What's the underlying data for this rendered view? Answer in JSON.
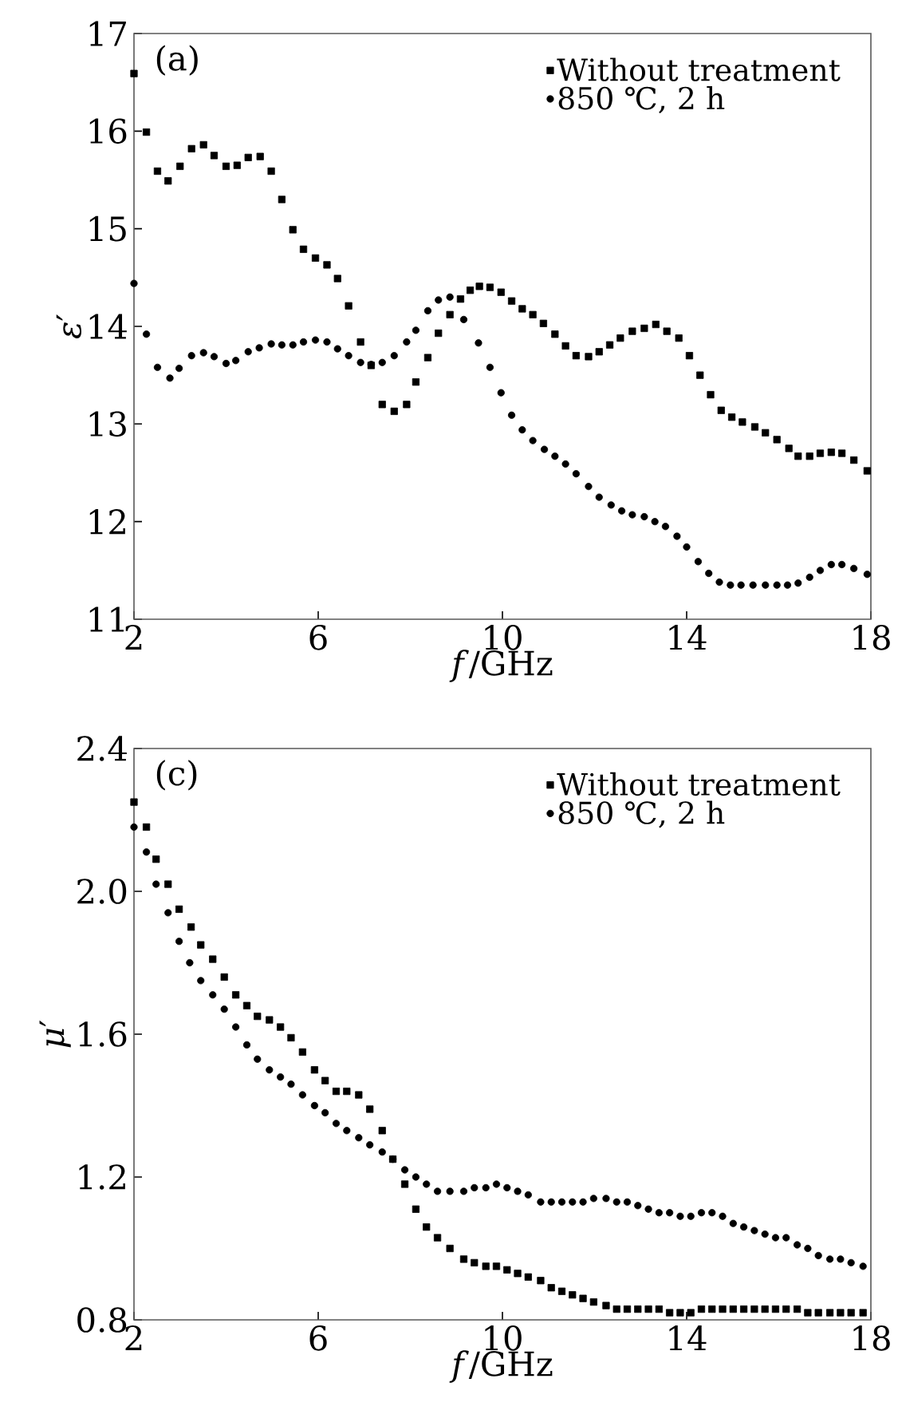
{
  "chart_data": [
    {
      "type": "scatter",
      "xlabel": "*f*/GHz",
      "ylabel": "*ε*′",
      "annotations": [
        "(a)"
      ],
      "xlim": [
        2,
        18
      ],
      "xticks": [
        2,
        6,
        10,
        14,
        18
      ],
      "ylim": [
        11,
        17
      ],
      "yticks": [
        11,
        12,
        13,
        14,
        15,
        16,
        17
      ],
      "legend": "top right",
      "grid": false,
      "series": [
        {
          "name": "Without treatment",
          "color": "#000000",
          "marker": "square",
          "x": [
            2.0,
            2.27,
            2.51,
            2.74,
            3.0,
            3.25,
            3.51,
            3.74,
            4.0,
            4.24,
            4.48,
            4.74,
            4.98,
            5.21,
            5.45,
            5.68,
            5.94,
            6.19,
            6.42,
            6.66,
            6.92,
            7.15,
            7.39,
            7.65,
            7.92,
            8.12,
            8.38,
            8.61,
            8.86,
            9.09,
            9.3,
            9.5,
            9.73,
            9.97,
            10.2,
            10.43,
            10.66,
            10.89,
            11.14,
            11.37,
            11.6,
            11.87,
            12.1,
            12.33,
            12.56,
            12.82,
            13.08,
            13.33,
            13.57,
            13.83,
            14.06,
            14.29,
            14.52,
            14.75,
            14.98,
            15.21,
            15.48,
            15.71,
            15.96,
            16.22,
            16.42,
            16.67,
            16.9,
            17.14,
            17.37,
            17.63,
            17.92
          ],
          "values": [
            16.59,
            15.99,
            15.59,
            15.49,
            15.64,
            15.82,
            15.86,
            15.75,
            15.64,
            15.65,
            15.73,
            15.74,
            15.59,
            15.3,
            14.99,
            14.79,
            14.7,
            14.63,
            14.49,
            14.21,
            13.84,
            13.6,
            13.2,
            13.13,
            13.2,
            13.43,
            13.68,
            13.93,
            14.12,
            14.28,
            14.37,
            14.41,
            14.4,
            14.35,
            14.26,
            14.18,
            14.12,
            14.03,
            13.92,
            13.8,
            13.7,
            13.69,
            13.74,
            13.81,
            13.88,
            13.95,
            13.98,
            14.02,
            13.95,
            13.88,
            13.7,
            13.5,
            13.3,
            13.14,
            13.07,
            13.02,
            12.97,
            12.91,
            12.84,
            12.75,
            12.67,
            12.67,
            12.7,
            12.71,
            12.7,
            12.63,
            12.52
          ]
        },
        {
          "name": "850 ℃, 2 h",
          "color": "#000000",
          "marker": "circle",
          "x": [
            2.0,
            2.27,
            2.51,
            2.78,
            2.98,
            3.25,
            3.51,
            3.74,
            4.0,
            4.21,
            4.48,
            4.72,
            4.98,
            5.21,
            5.45,
            5.68,
            5.94,
            6.19,
            6.42,
            6.66,
            6.92,
            7.15,
            7.39,
            7.65,
            7.92,
            8.12,
            8.38,
            8.61,
            8.86,
            9.16,
            9.48,
            9.73,
            9.97,
            10.2,
            10.43,
            10.66,
            10.91,
            11.14,
            11.37,
            11.6,
            11.87,
            12.1,
            12.36,
            12.59,
            12.82,
            13.08,
            13.31,
            13.54,
            13.79,
            14.0,
            14.25,
            14.48,
            14.71,
            14.95,
            15.18,
            15.44,
            15.71,
            15.96,
            16.19,
            16.42,
            16.67,
            16.9,
            17.14,
            17.37,
            17.63,
            17.92
          ],
          "values": [
            14.44,
            13.92,
            13.58,
            13.47,
            13.57,
            13.7,
            13.73,
            13.69,
            13.62,
            13.65,
            13.74,
            13.78,
            13.82,
            13.81,
            13.81,
            13.84,
            13.86,
            13.84,
            13.77,
            13.7,
            13.63,
            13.61,
            13.63,
            13.7,
            13.84,
            13.96,
            14.16,
            14.27,
            14.3,
            14.07,
            13.83,
            13.58,
            13.32,
            13.09,
            12.94,
            12.83,
            12.74,
            12.67,
            12.59,
            12.49,
            12.36,
            12.25,
            12.17,
            12.11,
            12.07,
            12.05,
            12.0,
            11.95,
            11.85,
            11.74,
            11.59,
            11.47,
            11.38,
            11.35,
            11.35,
            11.35,
            11.35,
            11.35,
            11.35,
            11.37,
            11.43,
            11.5,
            11.56,
            11.56,
            11.52,
            11.46
          ]
        }
      ]
    },
    {
      "type": "scatter",
      "xlabel": "*f*/GHz",
      "ylabel": "*μ*′",
      "annotations": [
        "(c)"
      ],
      "xlim": [
        2,
        18
      ],
      "xticks": [
        2,
        6,
        10,
        14,
        18
      ],
      "ylim": [
        0.8,
        2.4
      ],
      "yticks": [
        {
          "value": 0.8,
          "label": "0.8"
        },
        {
          "value": 1.2,
          "label": "1.2"
        },
        {
          "value": 1.6,
          "label": "1.6"
        },
        {
          "value": 2.0,
          "label": "2.0"
        },
        {
          "value": 2.4,
          "label": "2.4"
        }
      ],
      "legend": "top right",
      "grid": false,
      "series": [
        {
          "name": "Without treatment",
          "color": "#000000",
          "marker": "square",
          "x": [
            2.0,
            2.27,
            2.48,
            2.74,
            2.98,
            3.24,
            3.45,
            3.71,
            3.96,
            4.21,
            4.45,
            4.68,
            4.94,
            5.18,
            5.41,
            5.66,
            5.92,
            6.15,
            6.39,
            6.62,
            6.88,
            7.12,
            7.39,
            7.62,
            7.88,
            8.12,
            8.35,
            8.59,
            8.86,
            9.16,
            9.39,
            9.64,
            9.87,
            10.1,
            10.33,
            10.56,
            10.83,
            11.06,
            11.29,
            11.52,
            11.75,
            11.98,
            12.25,
            12.48,
            12.71,
            12.94,
            13.17,
            13.4,
            13.63,
            13.86,
            14.09,
            14.32,
            14.55,
            14.78,
            15.01,
            15.24,
            15.47,
            15.7,
            15.93,
            16.16,
            16.4,
            16.63,
            16.86,
            17.11,
            17.34,
            17.57,
            17.83
          ],
          "values": [
            2.25,
            2.18,
            2.09,
            2.02,
            1.95,
            1.9,
            1.85,
            1.81,
            1.76,
            1.71,
            1.68,
            1.65,
            1.64,
            1.62,
            1.59,
            1.55,
            1.5,
            1.47,
            1.44,
            1.44,
            1.43,
            1.39,
            1.33,
            1.25,
            1.18,
            1.11,
            1.06,
            1.03,
            1.0,
            0.97,
            0.96,
            0.95,
            0.95,
            0.94,
            0.93,
            0.92,
            0.91,
            0.89,
            0.88,
            0.87,
            0.86,
            0.85,
            0.84,
            0.83,
            0.83,
            0.83,
            0.83,
            0.83,
            0.82,
            0.82,
            0.82,
            0.83,
            0.83,
            0.83,
            0.83,
            0.83,
            0.83,
            0.83,
            0.83,
            0.83,
            0.83,
            0.82,
            0.82,
            0.82,
            0.82,
            0.82,
            0.82
          ]
        },
        {
          "name": "850 ℃, 2 h",
          "color": "#000000",
          "marker": "circle",
          "x": [
            2.0,
            2.27,
            2.48,
            2.74,
            2.98,
            3.21,
            3.45,
            3.71,
            3.96,
            4.21,
            4.45,
            4.68,
            4.94,
            5.18,
            5.41,
            5.66,
            5.92,
            6.15,
            6.39,
            6.62,
            6.88,
            7.12,
            7.39,
            7.62,
            7.88,
            8.12,
            8.35,
            8.59,
            8.86,
            9.16,
            9.39,
            9.64,
            9.87,
            10.1,
            10.33,
            10.56,
            10.83,
            11.06,
            11.29,
            11.52,
            11.75,
            11.98,
            12.25,
            12.48,
            12.71,
            12.94,
            13.17,
            13.4,
            13.63,
            13.86,
            14.09,
            14.32,
            14.55,
            14.78,
            15.01,
            15.24,
            15.47,
            15.7,
            15.93,
            16.16,
            16.4,
            16.63,
            16.86,
            17.11,
            17.34,
            17.57,
            17.83
          ],
          "values": [
            2.18,
            2.11,
            2.02,
            1.94,
            1.86,
            1.8,
            1.75,
            1.71,
            1.67,
            1.62,
            1.57,
            1.53,
            1.5,
            1.48,
            1.46,
            1.43,
            1.4,
            1.38,
            1.35,
            1.33,
            1.31,
            1.29,
            1.27,
            1.25,
            1.22,
            1.2,
            1.18,
            1.16,
            1.16,
            1.16,
            1.17,
            1.17,
            1.18,
            1.17,
            1.16,
            1.15,
            1.13,
            1.13,
            1.13,
            1.13,
            1.13,
            1.14,
            1.14,
            1.13,
            1.13,
            1.12,
            1.11,
            1.1,
            1.1,
            1.09,
            1.09,
            1.1,
            1.1,
            1.09,
            1.07,
            1.06,
            1.05,
            1.04,
            1.03,
            1.03,
            1.01,
            1.0,
            0.98,
            0.97,
            0.97,
            0.96,
            0.95
          ]
        }
      ]
    }
  ]
}
